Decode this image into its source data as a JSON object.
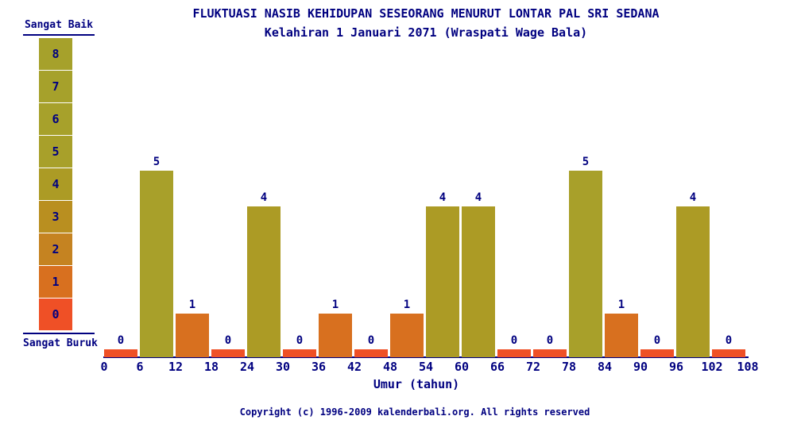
{
  "title": {
    "line1": "FLUKTUASI NASIB KEHIDUPAN SESEORANG MENURUT LONTAR PAL SRI SEDANA",
    "line2": "Kelahiran 1 Januari 2071 (Wraspati Wage Bala)"
  },
  "legend": {
    "top_label": "Sangat Baik",
    "bottom_label": "Sangat Buruk",
    "levels": [
      8,
      7,
      6,
      5,
      4,
      3,
      2,
      1,
      0
    ],
    "level_colors": {
      "0": "#EF5026",
      "1": "#D8701F",
      "2": "#C58321",
      "3": "#B98F20",
      "4": "#AC9B25",
      "5": "#A8A02A",
      "6": "#A7A12B",
      "7": "#A6A12B",
      "8": "#A6A12B"
    }
  },
  "chart_data": {
    "type": "bar",
    "title": "FLUKTUASI NASIB KEHIDUPAN SESEORANG MENURUT LONTAR PAL SRI SEDANA",
    "subtitle": "Kelahiran 1 Januari 2071 (Wraspati Wage Bala)",
    "xlabel": "Umur (tahun)",
    "ylabel": "",
    "categories": [
      "0-6",
      "6-12",
      "12-18",
      "18-24",
      "24-30",
      "30-36",
      "36-42",
      "42-48",
      "48-54",
      "54-60",
      "60-66",
      "66-72",
      "72-78",
      "78-84",
      "84-90",
      "90-96",
      "96-102",
      "102-108"
    ],
    "values": [
      0,
      5,
      1,
      0,
      4,
      0,
      1,
      0,
      1,
      4,
      4,
      0,
      0,
      5,
      1,
      0,
      4,
      0
    ],
    "x_ticks": [
      0,
      6,
      12,
      18,
      24,
      30,
      36,
      42,
      48,
      54,
      60,
      66,
      72,
      78,
      84,
      90,
      96,
      102,
      108
    ],
    "ylim": [
      0,
      8
    ],
    "grid": false,
    "legend_position": "left",
    "bar_labels_shown": true
  },
  "footer": {
    "copyright": "Copyright (c) 1996-2009 kalenderbali.org. All rights reserved"
  },
  "colors": {
    "text": "#000080",
    "background": "#FFFFFF",
    "axis": "#000080"
  }
}
